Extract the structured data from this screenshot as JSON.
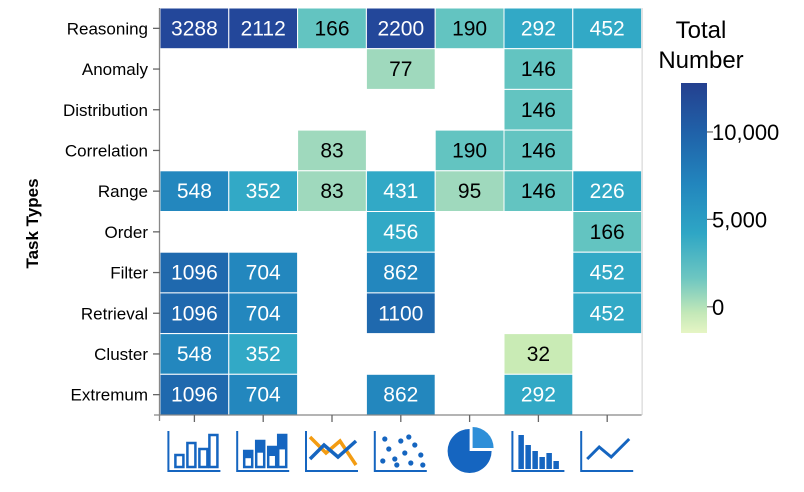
{
  "chart_data": {
    "type": "heatmap",
    "ylabel": "Task Types",
    "rows": [
      "Reasoning",
      "Anomaly",
      "Distribution",
      "Correlation",
      "Range",
      "Order",
      "Filter",
      "Retrieval",
      "Cluster",
      "Extremum"
    ],
    "columns": [
      "bar-chart-icon",
      "stacked-bar-chart-icon",
      "multi-line-chart-icon",
      "scatter-plot-icon",
      "pie-chart-icon",
      "histogram-icon",
      "line-chart-icon"
    ],
    "values": [
      [
        3288,
        2112,
        166,
        2200,
        190,
        292,
        452
      ],
      [
        null,
        null,
        null,
        77,
        null,
        146,
        null
      ],
      [
        null,
        null,
        null,
        null,
        null,
        146,
        null
      ],
      [
        null,
        null,
        83,
        null,
        190,
        146,
        null
      ],
      [
        548,
        352,
        83,
        431,
        95,
        146,
        226
      ],
      [
        null,
        null,
        null,
        456,
        null,
        null,
        166
      ],
      [
        1096,
        704,
        null,
        862,
        null,
        null,
        452
      ],
      [
        1096,
        704,
        null,
        1100,
        null,
        null,
        452
      ],
      [
        548,
        352,
        null,
        null,
        null,
        32,
        null
      ],
      [
        1096,
        704,
        null,
        862,
        null,
        292,
        null
      ]
    ],
    "colorbar": {
      "title_lines": [
        "Total",
        "Number"
      ],
      "tick_labels": [
        "10,000",
        "5,000",
        "0"
      ],
      "tick_values": [
        10000,
        5000,
        0
      ],
      "range": [
        -1500,
        12800
      ]
    },
    "colors": {
      "scale": [
        "#c9ebb5",
        "#9fd9bd",
        "#63c4c1",
        "#32a9c6",
        "#2387be",
        "#1f69ae",
        "#23479a"
      ],
      "dark_text": "#000000",
      "light_text": "#ffffff"
    }
  }
}
